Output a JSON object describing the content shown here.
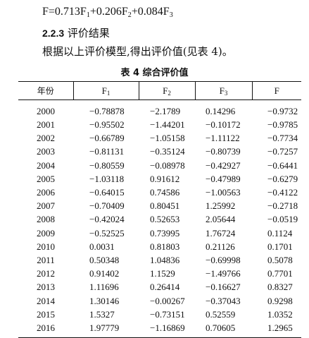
{
  "formula": {
    "lhs": "F=",
    "terms": [
      {
        "coef": "0.713F",
        "sub": "1",
        "sep": "+"
      },
      {
        "coef": "0.206F",
        "sub": "2",
        "sep": "+"
      },
      {
        "coef": "0.084F",
        "sub": "3",
        "sep": ""
      }
    ]
  },
  "section": {
    "number": "2.2.3",
    "title": "评价结果"
  },
  "sentence": "根据以上评价模型,得出评价值(见表 4)。",
  "table": {
    "caption": "表 4  综合评价值",
    "headers": [
      {
        "base": "年份",
        "sub": ""
      },
      {
        "base": "F",
        "sub": "1"
      },
      {
        "base": "F",
        "sub": "2"
      },
      {
        "base": "F",
        "sub": "3"
      },
      {
        "base": "F",
        "sub": ""
      }
    ],
    "rows": [
      [
        "2000",
        "−0.78878",
        "−2.1789",
        "0.14296",
        "−0.9732"
      ],
      [
        "2001",
        "−0.95502",
        "−1.44201",
        "−0.10172",
        "−0.9785"
      ],
      [
        "2002",
        "−0.66789",
        "−1.05158",
        "−1.11122",
        "−0.7734"
      ],
      [
        "2003",
        "−0.81131",
        "−0.35124",
        "−0.80739",
        "−0.7257"
      ],
      [
        "2004",
        "−0.80559",
        "−0.08978",
        "−0.42927",
        "−0.6441"
      ],
      [
        "2005",
        "−1.03118",
        "0.91612",
        "−0.47989",
        "−0.6279"
      ],
      [
        "2006",
        "−0.64015",
        "0.74586",
        "−1.00563",
        "−0.4122"
      ],
      [
        "2007",
        "−0.70409",
        "0.80451",
        "1.25992",
        "−0.2718"
      ],
      [
        "2008",
        "−0.42024",
        "0.52653",
        "2.05644",
        "−0.0519"
      ],
      [
        "2009",
        "−0.52525",
        "0.73995",
        "1.76724",
        "0.1124"
      ],
      [
        "2010",
        "0.0031",
        "0.81803",
        "0.21126",
        "0.1701"
      ],
      [
        "2011",
        "0.50348",
        "1.04836",
        "−0.69998",
        "0.5078"
      ],
      [
        "2012",
        "0.91402",
        "1.1529",
        "−1.49766",
        "0.7701"
      ],
      [
        "2013",
        "1.11696",
        "0.26414",
        "−0.16627",
        "0.8327"
      ],
      [
        "2014",
        "1.30146",
        "−0.00267",
        "−0.37043",
        "0.9298"
      ],
      [
        "2015",
        "1.5327",
        "−0.73151",
        "0.52559",
        "1.0352"
      ],
      [
        "2016",
        "1.97779",
        "−1.16869",
        "0.70605",
        "1.2965"
      ]
    ]
  }
}
